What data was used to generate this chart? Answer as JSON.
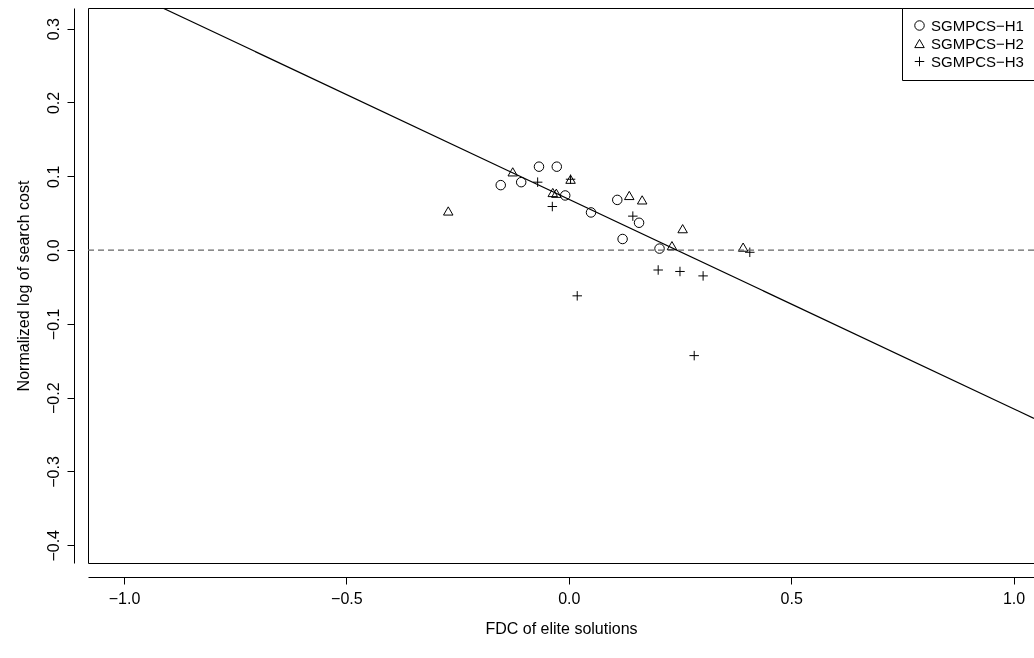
{
  "chart_data": {
    "type": "scatter",
    "xlabel": "FDC of elite solutions",
    "ylabel": "Normalized log of search cost",
    "xlim": [
      -1.081,
      1.046
    ],
    "ylim": [
      -0.424,
      0.328
    ],
    "xticks": [
      {
        "value": -1,
        "label": "−1.0"
      },
      {
        "value": -0.5,
        "label": "−0.5"
      },
      {
        "value": 0,
        "label": "0.0"
      },
      {
        "value": 0.5,
        "label": "0.5"
      },
      {
        "value": 1,
        "label": "1.0"
      }
    ],
    "yticks": [
      {
        "value": -0.4,
        "label": "−0.4"
      },
      {
        "value": -0.3,
        "label": "−0.3"
      },
      {
        "value": -0.2,
        "label": "−0.2"
      },
      {
        "value": -0.1,
        "label": "−0.1"
      },
      {
        "value": 0,
        "label": "0.0"
      },
      {
        "value": 0.1,
        "label": "0.1"
      },
      {
        "value": 0.2,
        "label": "0.2"
      },
      {
        "value": 0.3,
        "label": "0.3"
      }
    ],
    "grid": false,
    "legend": "top right",
    "ref_lines": [
      {
        "axis": "y",
        "value": 0,
        "color": "#666666",
        "line_style": "dashed"
      }
    ],
    "series": [
      {
        "name": "SGMPCS−H1",
        "color": "#000000",
        "marker": "circle",
        "x": [
          -0.153,
          -0.107,
          -0.067,
          -0.027,
          -0.008,
          0.05,
          0.109,
          0.121,
          0.158,
          0.204
        ],
        "values": [
          0.088,
          0.092,
          0.113,
          0.113,
          0.074,
          0.051,
          0.068,
          0.015,
          0.037,
          0.002
        ]
      },
      {
        "name": "SGMPCS−H2",
        "color": "#000000",
        "marker": "triangle",
        "x": [
          -0.271,
          -0.126,
          -0.036,
          -0.028,
          0.004,
          0.136,
          0.165,
          0.256,
          0.232,
          0.392
        ],
        "values": [
          0.053,
          0.106,
          0.078,
          0.077,
          0.096,
          0.074,
          0.068,
          0.029,
          0.006,
          0.004
        ]
      },
      {
        "name": "SGMPCS−H3",
        "color": "#000000",
        "marker": "cross",
        "x": [
          -0.07,
          -0.037,
          0.004,
          0.144,
          0.407,
          0.201,
          0.25,
          0.302,
          0.019,
          0.282
        ],
        "values": [
          0.092,
          0.059,
          0.096,
          0.046,
          -0.003,
          -0.027,
          -0.029,
          -0.035,
          -0.062,
          -0.143
        ]
      },
      {
        "type": "line",
        "color": "#000000",
        "line_style": "solid",
        "x": [
          -0.913,
          1.046
        ],
        "values": [
          0.328,
          -0.228
        ]
      }
    ]
  }
}
